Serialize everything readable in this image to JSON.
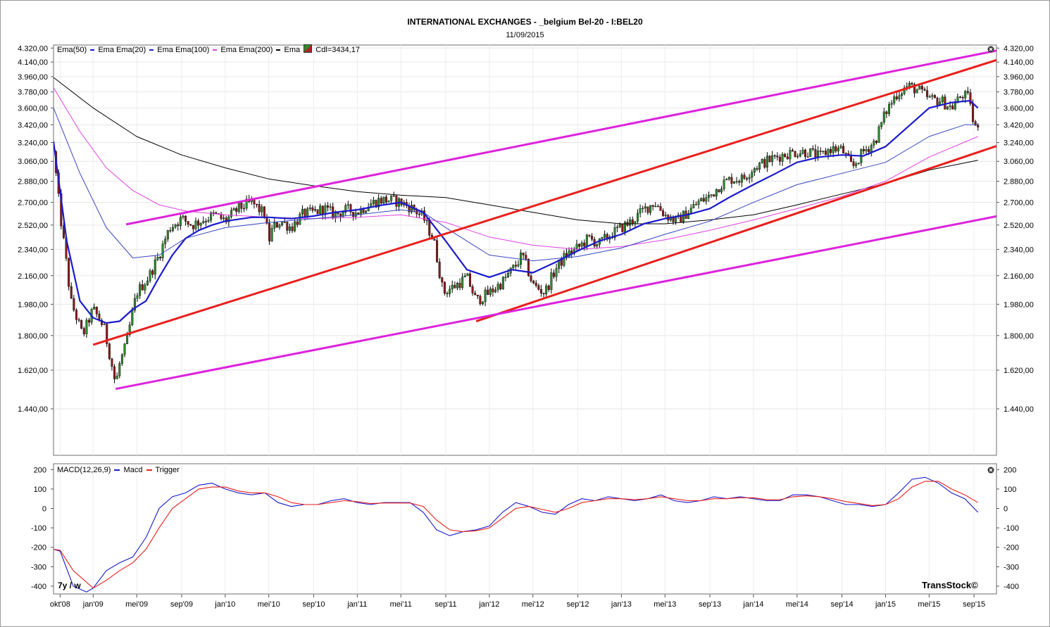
{
  "header": {
    "title": "INTERNATIONAL EXCHANGES - _belgium Bel-20 - I:BEL20",
    "date": "11/09/2015"
  },
  "price_legend": {
    "items": [
      {
        "label": "Ema(50)",
        "color": "#000000"
      },
      {
        "label": "Ema  Ema(20)",
        "color": "#1a1acc"
      },
      {
        "label": "Ema  Ema(100)",
        "color": "#1a1acc"
      },
      {
        "label": "Ema  Ema(200)",
        "color": "#e040e0"
      },
      {
        "label": "Ema",
        "color": "#000000"
      },
      {
        "label": "Cdl=3434,17",
        "color": "#000000"
      }
    ]
  },
  "macd_legend": {
    "name": "MACD(12,26,9)",
    "macd_label": "Macd",
    "trigger_label": "Trigger"
  },
  "timeframe": "7y / w",
  "brand": "TransStock©",
  "colors": {
    "candle_up": "#2e8b2e",
    "candle_down": "#8b1a1a",
    "ema20": "#1a1acc",
    "ema50": "#3a46c0",
    "ema100": "#e040e0",
    "ema200": "#000000",
    "channel_red": "#e8201c",
    "channel_magenta": "#dd22dd",
    "macd": "#1a1acc",
    "trigger": "#e8201c"
  },
  "chart_data": [
    {
      "type": "candlestick",
      "title": "INTERNATIONAL EXCHANGES - _belgium Bel-20 - I:BEL20",
      "subtitle": "11/09/2015",
      "y_ticks": [
        "4.320,00",
        "4.140,00",
        "3.960,00",
        "3.780,00",
        "3.600,00",
        "3.420,00",
        "3.240,00",
        "3.060,00",
        "2.880,00",
        "2.700,00",
        "2.520,00",
        "2.340,00",
        "2.160,00",
        "1.980,00",
        "1.800,00",
        "1.620,00",
        "1.440,00"
      ],
      "y_tick_values": [
        4320,
        4140,
        3960,
        3780,
        3600,
        3420,
        3240,
        3060,
        2880,
        2700,
        2520,
        2340,
        2160,
        1980,
        1800,
        1620,
        1440
      ],
      "y_scale": "log",
      "ylim": [
        1250,
        4360
      ],
      "x_ticks": [
        "okt'08",
        "jan'09",
        "mei'09",
        "sep'09",
        "jan'10",
        "mei'10",
        "sep'10",
        "jan'11",
        "mei'11",
        "sep'11",
        "jan'12",
        "mei'12",
        "sep'12",
        "jan'13",
        "mei'13",
        "sep'13",
        "jan'14",
        "mei'14",
        "sep'14",
        "jan'15",
        "mei'15",
        "sep'15"
      ],
      "x_tick_values": [
        2008.75,
        2009.0,
        2009.33,
        2009.67,
        2010.0,
        2010.33,
        2010.67,
        2011.0,
        2011.33,
        2011.67,
        2012.0,
        2012.33,
        2012.67,
        2013.0,
        2013.33,
        2013.67,
        2014.0,
        2014.33,
        2014.67,
        2015.0,
        2015.33,
        2015.67
      ],
      "xlim": [
        2008.7,
        2015.84
      ],
      "last_close": 3434.17,
      "close_path": {
        "x": [
          2008.7,
          2008.75,
          2008.83,
          2008.92,
          2009.0,
          2009.08,
          2009.17,
          2009.2,
          2009.25,
          2009.33,
          2009.42,
          2009.5,
          2009.58,
          2009.67,
          2009.75,
          2009.83,
          2009.92,
          2010.0,
          2010.1,
          2010.2,
          2010.3,
          2010.33,
          2010.36,
          2010.42,
          2010.5,
          2010.58,
          2010.67,
          2010.75,
          2010.83,
          2010.92,
          2011.0,
          2011.08,
          2011.17,
          2011.25,
          2011.33,
          2011.42,
          2011.5,
          2011.58,
          2011.65,
          2011.75,
          2011.83,
          2011.9,
          2012.0,
          2012.1,
          2012.2,
          2012.25,
          2012.33,
          2012.42,
          2012.5,
          2012.58,
          2012.67,
          2012.75,
          2012.83,
          2012.92,
          2013.0,
          2013.08,
          2013.17,
          2013.25,
          2013.33,
          2013.42,
          2013.5,
          2013.58,
          2013.67,
          2013.75,
          2013.83,
          2013.92,
          2014.0,
          2014.08,
          2014.17,
          2014.25,
          2014.33,
          2014.42,
          2014.5,
          2014.58,
          2014.67,
          2014.75,
          2014.83,
          2014.92,
          2015.0,
          2015.08,
          2015.17,
          2015.25,
          2015.33,
          2015.42,
          2015.5,
          2015.58,
          2015.64,
          2015.67,
          2015.7
        ],
        "y": [
          3150,
          2600,
          2000,
          1800,
          1950,
          1850,
          1550,
          1650,
          1750,
          2050,
          2150,
          2300,
          2500,
          2570,
          2520,
          2560,
          2600,
          2550,
          2650,
          2700,
          2600,
          2400,
          2500,
          2550,
          2500,
          2600,
          2620,
          2650,
          2600,
          2640,
          2620,
          2680,
          2720,
          2720,
          2700,
          2650,
          2580,
          2400,
          2050,
          2100,
          2150,
          2000,
          2050,
          2120,
          2230,
          2300,
          2100,
          2050,
          2200,
          2300,
          2350,
          2420,
          2380,
          2450,
          2500,
          2550,
          2640,
          2700,
          2600,
          2550,
          2620,
          2700,
          2750,
          2850,
          2900,
          2900,
          3000,
          3050,
          3100,
          3130,
          3150,
          3150,
          3100,
          3180,
          3170,
          3000,
          3150,
          3250,
          3550,
          3750,
          3850,
          3800,
          3700,
          3680,
          3600,
          3750,
          3700,
          3350,
          3440
        ]
      },
      "ema_50": {
        "x": [
          2008.7,
          2008.8,
          2008.9,
          2009.0,
          2009.1,
          2009.2,
          2009.3,
          2009.4,
          2009.5,
          2009.6,
          2009.7,
          2009.8,
          2009.9,
          2010.0,
          2010.2,
          2010.33,
          2010.5,
          2010.67,
          2010.83,
          2011.0,
          2011.2,
          2011.33,
          2011.5,
          2011.67,
          2011.83,
          2012.0,
          2012.17,
          2012.33,
          2012.5,
          2012.67,
          2012.83,
          2013.0,
          2013.17,
          2013.33,
          2013.5,
          2013.67,
          2013.83,
          2014.0,
          2014.17,
          2014.33,
          2014.5,
          2014.67,
          2014.83,
          2015.0,
          2015.17,
          2015.33,
          2015.5,
          2015.64,
          2015.7
        ],
        "y": [
          3250,
          2400,
          2000,
          1900,
          1870,
          1880,
          1950,
          2000,
          2150,
          2300,
          2420,
          2480,
          2520,
          2550,
          2580,
          2580,
          2570,
          2590,
          2620,
          2640,
          2680,
          2700,
          2620,
          2400,
          2200,
          2150,
          2200,
          2180,
          2250,
          2330,
          2400,
          2450,
          2530,
          2570,
          2600,
          2650,
          2750,
          2850,
          2950,
          3050,
          3100,
          3120,
          3110,
          3200,
          3400,
          3600,
          3660,
          3680,
          3600
        ]
      },
      "ema_100": {
        "x": [
          2008.7,
          2008.9,
          2009.1,
          2009.3,
          2009.5,
          2009.7,
          2010.0,
          2010.33,
          2010.67,
          2011.0,
          2011.33,
          2011.5,
          2011.67,
          2011.83,
          2012.0,
          2012.33,
          2012.67,
          2013.0,
          2013.33,
          2013.67,
          2014.0,
          2014.33,
          2014.67,
          2015.0,
          2015.33,
          2015.6,
          2015.7
        ],
        "y": [
          3600,
          2950,
          2500,
          2280,
          2300,
          2420,
          2500,
          2540,
          2570,
          2600,
          2640,
          2620,
          2500,
          2400,
          2300,
          2260,
          2290,
          2350,
          2450,
          2550,
          2700,
          2850,
          2950,
          3050,
          3300,
          3420,
          3420
        ]
      },
      "ema_200": {
        "x": [
          2008.7,
          2008.9,
          2009.1,
          2009.3,
          2009.5,
          2009.7,
          2010.0,
          2010.33,
          2010.67,
          2011.0,
          2011.33,
          2011.67,
          2012.0,
          2012.33,
          2012.67,
          2013.0,
          2013.33,
          2013.67,
          2014.0,
          2014.33,
          2014.67,
          2015.0,
          2015.33,
          2015.7
        ],
        "y": [
          3830,
          3350,
          3000,
          2800,
          2680,
          2630,
          2600,
          2580,
          2570,
          2580,
          2600,
          2540,
          2430,
          2370,
          2340,
          2360,
          2410,
          2480,
          2560,
          2650,
          2750,
          2880,
          3100,
          3300
        ]
      },
      "ema_long": {
        "x": [
          2008.7,
          2009.0,
          2009.33,
          2009.67,
          2010.0,
          2010.33,
          2010.67,
          2011.0,
          2011.33,
          2011.67,
          2012.0,
          2012.33,
          2012.67,
          2013.0,
          2013.33,
          2013.67,
          2014.0,
          2014.33,
          2014.67,
          2015.0,
          2015.33,
          2015.7
        ],
        "y": [
          3950,
          3600,
          3300,
          3120,
          3000,
          2900,
          2840,
          2790,
          2760,
          2740,
          2680,
          2620,
          2560,
          2530,
          2530,
          2560,
          2600,
          2680,
          2770,
          2860,
          2980,
          3070
        ]
      },
      "trend_lines": [
        {
          "color": "red",
          "x": [
            2009.0,
            2015.85
          ],
          "y": [
            1750,
            4170
          ]
        },
        {
          "color": "red",
          "x": [
            2011.9,
            2015.85
          ],
          "y": [
            1880,
            3210
          ]
        },
        {
          "color": "magenta",
          "x": [
            2009.25,
            2015.85
          ],
          "y": [
            2525,
            4290
          ]
        },
        {
          "color": "magenta",
          "x": [
            2009.17,
            2015.85
          ],
          "y": [
            1530,
            2590
          ]
        }
      ]
    },
    {
      "type": "line",
      "title": "MACD(12,26,9)",
      "y_ticks": [
        "200",
        "100",
        "0",
        "-100",
        "-200",
        "-300",
        "-400"
      ],
      "y_tick_values": [
        200,
        100,
        0,
        -100,
        -200,
        -300,
        -400
      ],
      "ylim": [
        -440,
        230
      ],
      "x": [
        2008.7,
        2008.75,
        2008.85,
        2008.95,
        2009.0,
        2009.1,
        2009.2,
        2009.3,
        2009.4,
        2009.5,
        2009.6,
        2009.7,
        2009.8,
        2009.9,
        2010.0,
        2010.1,
        2010.2,
        2010.3,
        2010.4,
        2010.5,
        2010.6,
        2010.7,
        2010.8,
        2010.9,
        2011.0,
        2011.1,
        2011.2,
        2011.3,
        2011.4,
        2011.5,
        2011.6,
        2011.7,
        2011.8,
        2011.9,
        2012.0,
        2012.1,
        2012.2,
        2012.3,
        2012.4,
        2012.5,
        2012.6,
        2012.7,
        2012.8,
        2012.9,
        2013.0,
        2013.1,
        2013.2,
        2013.3,
        2013.4,
        2013.5,
        2013.6,
        2013.7,
        2013.8,
        2013.9,
        2014.0,
        2014.1,
        2014.2,
        2014.3,
        2014.4,
        2014.5,
        2014.6,
        2014.7,
        2014.8,
        2014.9,
        2015.0,
        2015.1,
        2015.2,
        2015.3,
        2015.4,
        2015.5,
        2015.6,
        2015.7
      ],
      "series": [
        {
          "name": "Macd",
          "values": [
            -210,
            -220,
            -400,
            -430,
            -410,
            -320,
            -280,
            -250,
            -150,
            0,
            60,
            80,
            120,
            130,
            100,
            80,
            70,
            80,
            30,
            10,
            20,
            20,
            40,
            50,
            30,
            20,
            30,
            30,
            30,
            -20,
            -110,
            -140,
            -120,
            -110,
            -90,
            -20,
            30,
            10,
            -20,
            -30,
            20,
            50,
            40,
            60,
            50,
            40,
            50,
            70,
            40,
            30,
            40,
            60,
            50,
            60,
            50,
            40,
            40,
            70,
            70,
            60,
            40,
            20,
            20,
            10,
            20,
            80,
            150,
            160,
            130,
            80,
            50,
            -20
          ]
        },
        {
          "name": "Trigger",
          "values": [
            -210,
            -215,
            -320,
            -380,
            -410,
            -370,
            -320,
            -280,
            -210,
            -100,
            0,
            50,
            100,
            110,
            110,
            90,
            80,
            80,
            60,
            30,
            20,
            20,
            30,
            40,
            35,
            25,
            28,
            28,
            28,
            10,
            -60,
            -110,
            -120,
            -115,
            -100,
            -50,
            0,
            10,
            -5,
            -20,
            0,
            30,
            40,
            50,
            50,
            45,
            50,
            60,
            50,
            40,
            40,
            50,
            50,
            55,
            55,
            45,
            45,
            60,
            65,
            60,
            50,
            35,
            25,
            15,
            20,
            50,
            110,
            140,
            140,
            100,
            70,
            30
          ]
        }
      ]
    }
  ]
}
